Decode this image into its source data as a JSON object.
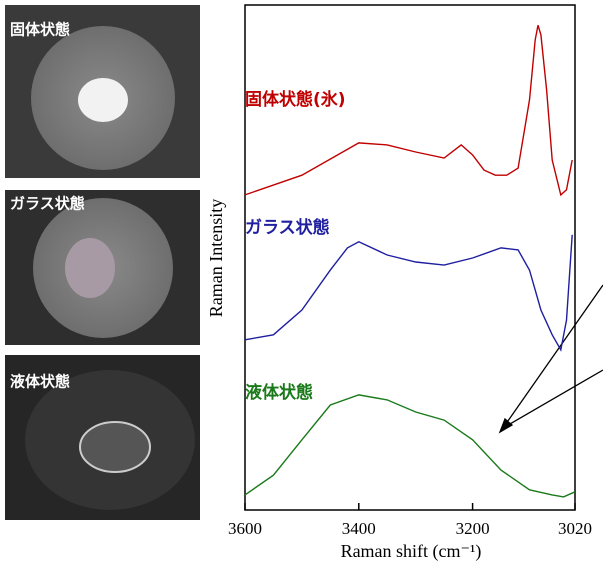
{
  "photos": [
    {
      "label": "固体状態"
    },
    {
      "label": "ガラス状態"
    },
    {
      "label": "液体状態"
    }
  ],
  "chart_data": {
    "type": "line",
    "x_label": "Raman shift (cm⁻¹)",
    "y_label": "Raman Intensity",
    "xlim": [
      3600,
      3020
    ],
    "xticks": [
      3600,
      3400,
      3200,
      3020
    ],
    "ylim": [
      0,
      100
    ],
    "series": [
      {
        "name": "固体状態(氷)",
        "color": "#c00000",
        "x": [
          3600,
          3500,
          3400,
          3350,
          3300,
          3250,
          3220,
          3200,
          3180,
          3160,
          3140,
          3120,
          3100,
          3090,
          3085,
          3080,
          3070,
          3060,
          3045,
          3035,
          3025
        ],
        "values": [
          62.4,
          66.3,
          72.7,
          72.3,
          70.9,
          69.7,
          72.3,
          70.3,
          67.3,
          66.3,
          66.3,
          67.7,
          81.2,
          93.1,
          96.0,
          94.1,
          83.2,
          69.3,
          62.4,
          63.4,
          69.3
        ]
      },
      {
        "name": "ガラス状態",
        "color": "#1f1fa0",
        "x": [
          3600,
          3550,
          3500,
          3450,
          3420,
          3400,
          3350,
          3300,
          3250,
          3200,
          3150,
          3120,
          3100,
          3080,
          3060,
          3045,
          3035,
          3025
        ],
        "values": [
          33.7,
          34.7,
          39.6,
          47.5,
          51.9,
          53.1,
          50.5,
          49.1,
          48.5,
          49.9,
          51.9,
          51.5,
          47.5,
          39.6,
          34.7,
          31.7,
          37.6,
          54.5
        ]
      },
      {
        "name": "液体状態",
        "color": "#1a7a1a",
        "x": [
          3600,
          3550,
          3500,
          3450,
          3400,
          3350,
          3300,
          3250,
          3200,
          3150,
          3100,
          3060,
          3040,
          3020
        ],
        "values": [
          3.0,
          6.9,
          13.9,
          20.8,
          22.8,
          21.8,
          19.4,
          17.8,
          13.9,
          7.9,
          4.0,
          3.0,
          2.6,
          3.6
        ]
      }
    ]
  }
}
